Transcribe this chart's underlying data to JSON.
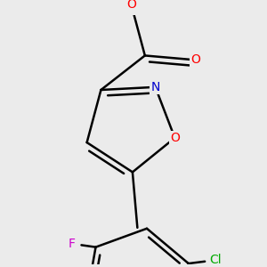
{
  "background_color": "#ebebeb",
  "bond_color": "#000000",
  "bond_width": 1.8,
  "atom_colors": {
    "O": "#ff0000",
    "N": "#0000cc",
    "Cl": "#00aa00",
    "F": "#cc00cc"
  },
  "font_size": 10,
  "fig_width": 3.0,
  "fig_height": 3.0,
  "dpi": 100
}
